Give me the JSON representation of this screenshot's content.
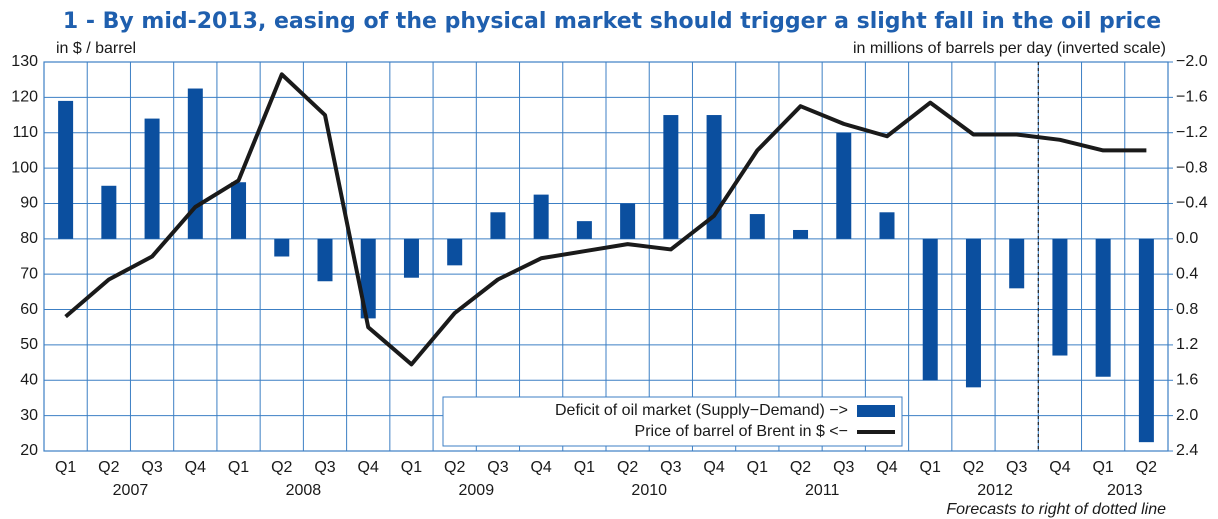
{
  "chart_data": {
    "type": "bar_line",
    "title": "1 -  By mid-2013, easing of the physical market should trigger a slight fall in the oil price",
    "y_label": "in $ / barrel",
    "y2_label": "in millions of barrels per day (inverted scale)",
    "note": "Forecasts to right of dotted line",
    "categories": [
      "Q1",
      "Q2",
      "Q3",
      "Q4",
      "Q1",
      "Q2",
      "Q3",
      "Q4",
      "Q1",
      "Q2",
      "Q3",
      "Q4",
      "Q1",
      "Q2",
      "Q3",
      "Q4",
      "Q1",
      "Q2",
      "Q3",
      "Q4",
      "Q1",
      "Q2",
      "Q3",
      "Q4",
      "Q1",
      "Q2"
    ],
    "x_group_labels": [
      "2007",
      "2008",
      "2009",
      "2010",
      "2011",
      "2012",
      "2013"
    ],
    "series": [
      {
        "name": "Deficit of oil market (Supply−Demand) −>",
        "type": "bar",
        "axis": "y2",
        "color": "#0b4f9f",
        "values": [
          -1.56,
          -0.6,
          -1.36,
          -1.7,
          -0.64,
          0.2,
          0.48,
          0.9,
          0.44,
          0.3,
          -0.3,
          -0.5,
          -0.2,
          -0.4,
          -1.4,
          -1.4,
          -0.28,
          -0.1,
          -1.2,
          -0.3,
          1.6,
          1.68,
          0.56,
          1.32,
          1.56,
          2.3
        ]
      },
      {
        "name": "Price of barrel of Brent in $ <−",
        "type": "line",
        "axis": "y",
        "color": "#1a1a1a",
        "values": [
          58,
          68.5,
          75,
          89,
          96.5,
          126.5,
          115,
          55,
          44.5,
          59,
          68.5,
          74.5,
          76.5,
          78.5,
          77,
          86.5,
          105,
          117.5,
          112.5,
          109,
          118.5,
          109.5,
          109.5,
          108,
          105,
          105
        ]
      }
    ],
    "ylim": [
      20,
      130
    ],
    "yticks": [
      20,
      30,
      40,
      50,
      60,
      70,
      80,
      90,
      100,
      110,
      120,
      130
    ],
    "y2lim": [
      -2,
      2.4
    ],
    "y2_inverted": true,
    "y2ticks": [
      {
        "value": -2,
        "label": "−2.0"
      },
      {
        "value": -1.6,
        "label": "−1.6"
      },
      {
        "value": -1.2,
        "label": "−1.2"
      },
      {
        "value": -0.8,
        "label": "−0.8"
      },
      {
        "value": -0.4,
        "label": "−0.4"
      },
      {
        "value": 0,
        "label": "0.0"
      },
      0.4,
      0.8,
      1.2,
      1.6,
      {
        "value": 2,
        "label": "2.0"
      },
      2.4
    ],
    "grid": true,
    "grid_color": "#3c7fc4"
  }
}
